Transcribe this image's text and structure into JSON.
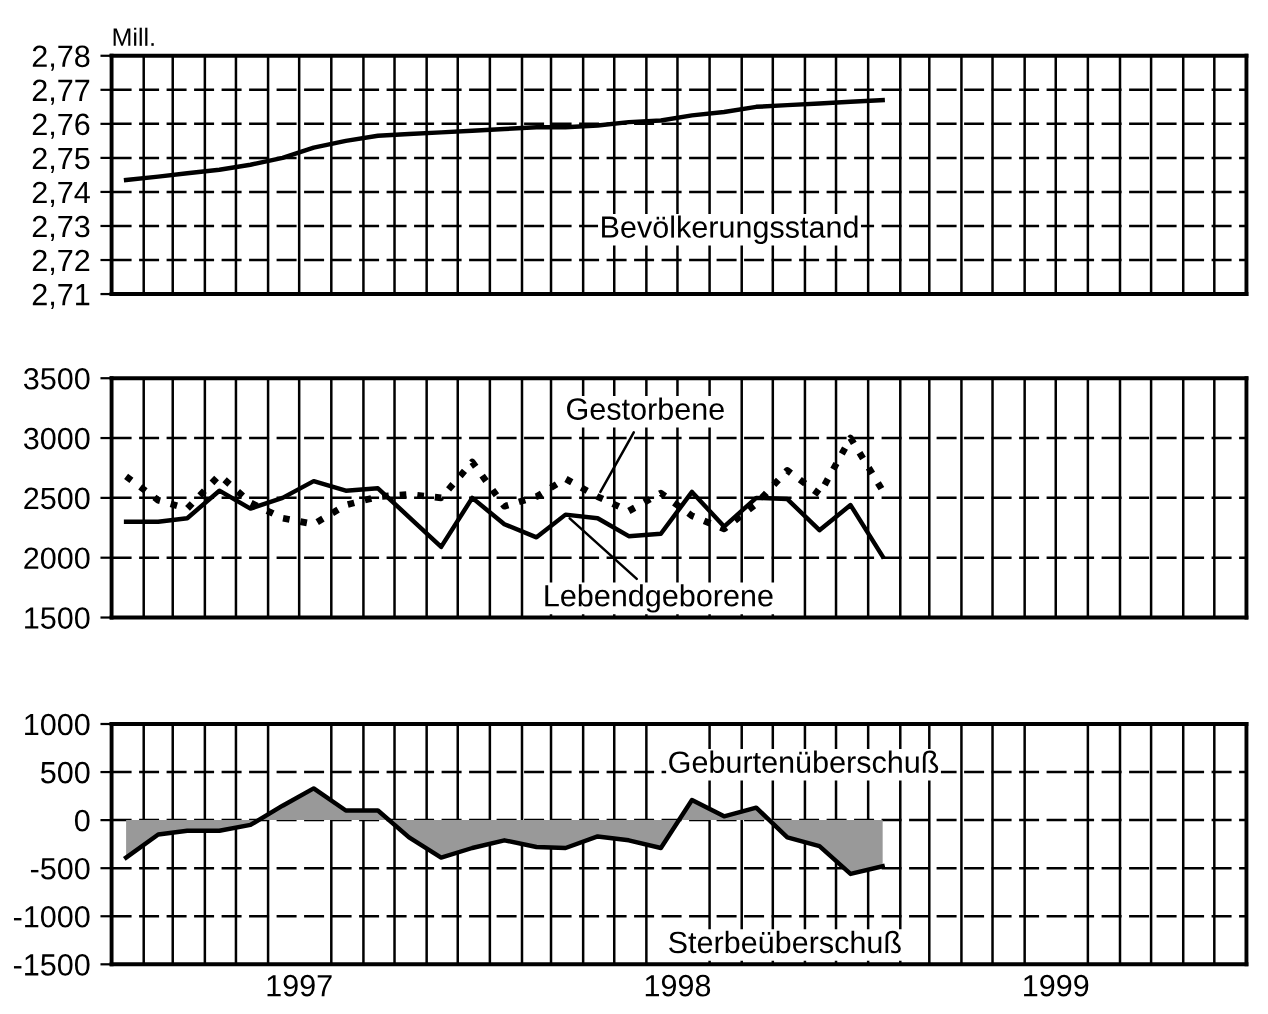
{
  "chart_data": [
    {
      "type": "line",
      "ylabel": "Mill.",
      "x": [
        "1997-01-15",
        "1997-02-15",
        "1997-03-15",
        "1997-04-15",
        "1997-05-15",
        "1997-06-15",
        "1997-07-15",
        "1997-08-15",
        "1997-09-15",
        "1997-10-15",
        "1997-11-15",
        "1997-12-15",
        "1998-01-15",
        "1998-02-15",
        "1998-03-15",
        "1998-04-15",
        "1998-05-15",
        "1998-06-15",
        "1998-07-15",
        "1998-08-15",
        "1998-09-15",
        "1998-10-15",
        "1998-11-15",
        "1998-12-15",
        "1999-01-15"
      ],
      "series": [
        {
          "color": "#000000",
          "values": [
            2.7435,
            2.7445,
            2.7455,
            2.7465,
            2.748,
            2.75,
            2.753,
            2.755,
            2.7565,
            2.757,
            2.7575,
            2.758,
            2.7585,
            2.759,
            2.759,
            2.7595,
            2.7605,
            2.761,
            2.7625,
            2.7635,
            2.765,
            2.7655,
            2.766,
            2.7665,
            2.767
          ]
        }
      ],
      "annotations": [
        "Bevölkerungsstand"
      ],
      "xlim": [
        "1997-01-01",
        "2000-01-01"
      ],
      "ylim": [
        2.71,
        2.78
      ],
      "yticks": [
        {
          "value": 2.71,
          "label": "2,71"
        },
        {
          "value": 2.72,
          "label": "2,72"
        },
        {
          "value": 2.73,
          "label": "2,73"
        },
        {
          "value": 2.74,
          "label": "2,74"
        },
        {
          "value": 2.75,
          "label": "2,75"
        },
        {
          "value": 2.76,
          "label": "2,76"
        },
        {
          "value": 2.77,
          "label": "2,77"
        },
        {
          "value": 2.78,
          "label": "2,78"
        }
      ],
      "grid": true,
      "legend": false,
      "tick_labels": "y"
    },
    {
      "type": "line",
      "x": [
        "1997-01-15",
        "1997-02-15",
        "1997-03-15",
        "1997-04-15",
        "1997-05-15",
        "1997-06-15",
        "1997-07-15",
        "1997-08-15",
        "1997-09-15",
        "1997-10-15",
        "1997-11-15",
        "1997-12-15",
        "1998-01-15",
        "1998-02-15",
        "1998-03-15",
        "1998-04-15",
        "1998-05-15",
        "1998-06-15",
        "1998-07-15",
        "1998-08-15",
        "1998-09-15",
        "1998-10-15",
        "1998-11-15",
        "1998-12-15",
        "1999-01-15"
      ],
      "series": [
        {
          "color": "#000000",
          "line_style": "solid",
          "values": [
            2300,
            2300,
            2330,
            2560,
            2410,
            2500,
            2640,
            2560,
            2580,
            2340,
            2090,
            2500,
            2280,
            2170,
            2360,
            2330,
            2180,
            2200,
            2550,
            2260,
            2500,
            2490,
            2230,
            2440,
            2010
          ]
        },
        {
          "color": "#000000",
          "line_style": "dotted",
          "values": [
            2680,
            2480,
            2410,
            2690,
            2460,
            2330,
            2280,
            2440,
            2510,
            2530,
            2500,
            2800,
            2430,
            2510,
            2660,
            2510,
            2390,
            2540,
            2350,
            2240,
            2450,
            2730,
            2530,
            3000,
            2560
          ]
        }
      ],
      "annotations": [
        {
          "text": "Gestorbene",
          "x": "1998-04-15",
          "y": 2510
        },
        {
          "text": "Lebendgeborene",
          "x": "1998-03-15",
          "y": 2360
        }
      ],
      "xlim": [
        "1997-01-01",
        "2000-01-01"
      ],
      "ylim": [
        1500,
        3500
      ],
      "yticks": [
        1500,
        2000,
        2500,
        3000,
        3500
      ],
      "grid": true,
      "legend": false,
      "tick_labels": "y"
    },
    {
      "type": "area",
      "x": [
        "1997-01-15",
        "1997-02-15",
        "1997-03-15",
        "1997-04-15",
        "1997-05-15",
        "1997-06-15",
        "1997-07-15",
        "1997-08-15",
        "1997-09-15",
        "1997-10-15",
        "1997-11-15",
        "1997-12-15",
        "1998-01-15",
        "1998-02-15",
        "1998-03-15",
        "1998-04-15",
        "1998-05-15",
        "1998-06-15",
        "1998-07-15",
        "1998-08-15",
        "1998-09-15",
        "1998-10-15",
        "1998-11-15",
        "1998-12-15",
        "1999-01-15"
      ],
      "series": [
        {
          "color": "#999999",
          "values": [
            -390,
            -150,
            -110,
            -110,
            -50,
            150,
            330,
            100,
            100,
            -180,
            -390,
            -290,
            -210,
            -280,
            -290,
            -170,
            -210,
            -290,
            210,
            40,
            130,
            -180,
            -270,
            -560,
            -480
          ]
        }
      ],
      "annotations": [
        "Geburtenüberschuß",
        "Sterbeüberschuß"
      ],
      "xlim": [
        "1997-01-01",
        "2000-01-01"
      ],
      "xticks": [
        {
          "value": "1997-07-01",
          "label": "1997"
        },
        {
          "value": "1998-07-01",
          "label": "1998"
        },
        {
          "value": "1999-07-01",
          "label": "1999"
        }
      ],
      "ylim": [
        -1500,
        1000
      ],
      "yticks": [
        -1500,
        -1000,
        -500,
        0,
        500,
        1000
      ],
      "grid": true,
      "legend": false
    }
  ]
}
